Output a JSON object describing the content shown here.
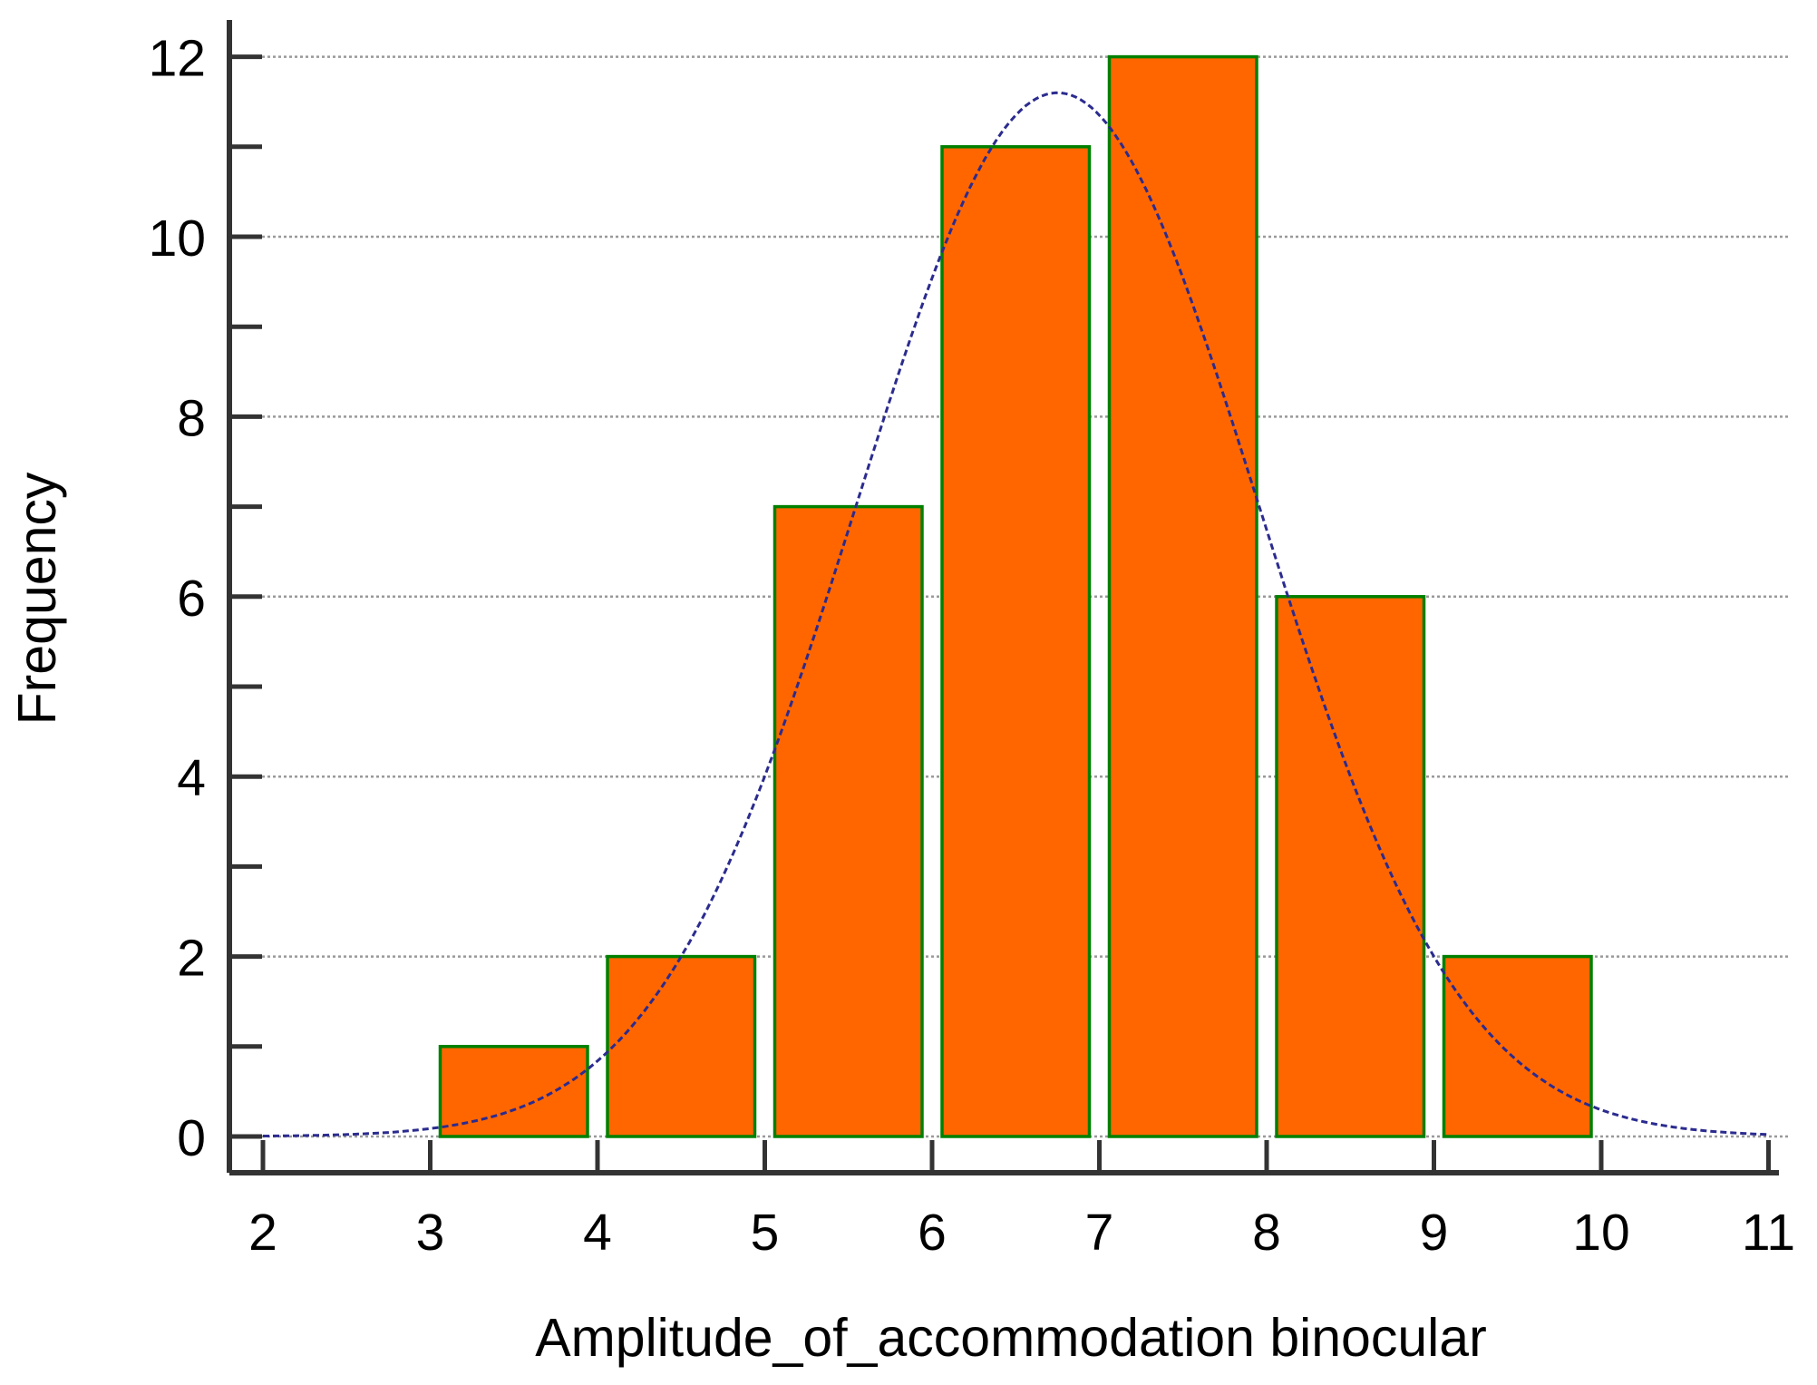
{
  "chart_data": {
    "type": "bar",
    "title": "",
    "xlabel": "Amplitude_of_accommodation binocular",
    "ylabel": "Frequency",
    "xlim": [
      2,
      11
    ],
    "ylim": [
      0,
      12
    ],
    "x_ticks": [
      "2",
      "3",
      "4",
      "5",
      "6",
      "7",
      "8",
      "9",
      "10",
      "11"
    ],
    "y_ticks": [
      "0",
      "2",
      "4",
      "6",
      "8",
      "10",
      "12"
    ],
    "grid": "horizontal dotted",
    "bins": [
      {
        "start": 3,
        "end": 4,
        "value": 1
      },
      {
        "start": 4,
        "end": 5,
        "value": 2
      },
      {
        "start": 5,
        "end": 6,
        "value": 7
      },
      {
        "start": 6,
        "end": 7,
        "value": 11
      },
      {
        "start": 7,
        "end": 8,
        "value": 12
      },
      {
        "start": 8,
        "end": 9,
        "value": 6
      },
      {
        "start": 9,
        "end": 10,
        "value": 2
      }
    ],
    "normal_curve": {
      "peak": 11.6,
      "mean": 6.75,
      "sd": 1.2,
      "style": "dashed"
    },
    "colors": {
      "bar_fill": "#ff6600",
      "bar_stroke": "#008000",
      "curve": "#2b2b8f",
      "axis": "#333333",
      "grid": "#999999"
    }
  }
}
